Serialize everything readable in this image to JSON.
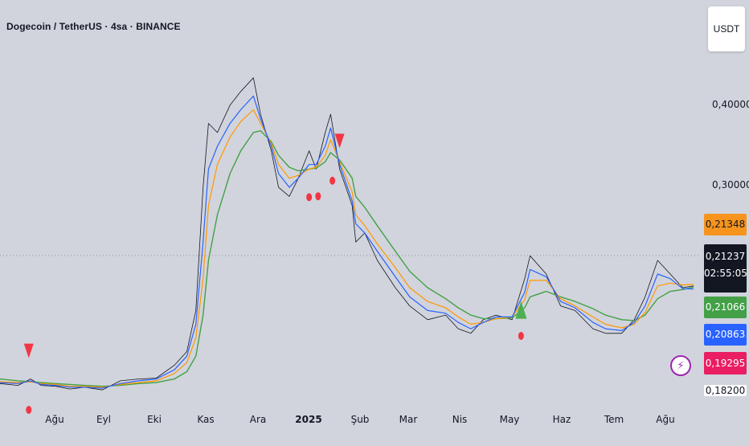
{
  "header": {
    "title": "Dogecoin / TetherUS · 4sa · BINANCE",
    "currency_button": "USDT"
  },
  "colors": {
    "background": "#d1d4dc",
    "price": "#131722",
    "ma_fast": "#2962ff",
    "ma_mid": "#ff9800",
    "ma_slow": "#43a047",
    "signal_sell": "#f23645",
    "signal_buy": "#4caf50"
  },
  "badges": {
    "orange": "0,21348",
    "current_price": "0,21237",
    "countdown": "02:55:05",
    "green": "0,21066",
    "blue": "0,20863",
    "pink": "0,19295",
    "last": "0,18200"
  },
  "chart_data": {
    "type": "line",
    "x_labels": [
      "Ağu",
      "Eyl",
      "Eki",
      "Kas",
      "Ara",
      "2025",
      "Şub",
      "Mar",
      "Nis",
      "May",
      "Haz",
      "Tem",
      "Ağu"
    ],
    "y_labels": [
      "0,40000",
      "0,30000"
    ],
    "x": [
      "2024-07-20",
      "2024-07-30",
      "2024-08-06",
      "2024-08-12",
      "2024-08-20",
      "2024-08-28",
      "2024-09-05",
      "2024-09-15",
      "2024-09-25",
      "2024-10-05",
      "2024-10-15",
      "2024-10-25",
      "2024-11-01",
      "2024-11-06",
      "2024-11-10",
      "2024-11-13",
      "2024-11-18",
      "2024-11-25",
      "2024-12-01",
      "2024-12-08",
      "2024-12-12",
      "2024-12-18",
      "2024-12-22",
      "2024-12-28",
      "2025-01-02",
      "2025-01-08",
      "2025-01-12",
      "2025-01-17",
      "2025-01-20",
      "2025-01-25",
      "2025-02-01",
      "2025-02-03",
      "2025-02-08",
      "2025-02-15",
      "2025-02-25",
      "2025-03-05",
      "2025-03-15",
      "2025-03-25",
      "2025-04-01",
      "2025-04-08",
      "2025-04-15",
      "2025-04-22",
      "2025-05-01",
      "2025-05-08",
      "2025-05-11",
      "2025-05-20",
      "2025-05-28",
      "2025-06-05",
      "2025-06-15",
      "2025-06-22",
      "2025-07-01",
      "2025-07-08",
      "2025-07-14",
      "2025-07-21",
      "2025-07-28",
      "2025-08-04",
      "2025-08-10"
    ],
    "series": [
      {
        "values": [
          0.105,
          0.103,
          0.11,
          0.103,
          0.102,
          0.099,
          0.101,
          0.098,
          0.108,
          0.11,
          0.111,
          0.125,
          0.14,
          0.185,
          0.32,
          0.39,
          0.38,
          0.41,
          0.425,
          0.44,
          0.4,
          0.36,
          0.32,
          0.31,
          0.33,
          0.36,
          0.34,
          0.38,
          0.4,
          0.34,
          0.3,
          0.26,
          0.27,
          0.24,
          0.21,
          0.19,
          0.175,
          0.18,
          0.165,
          0.16,
          0.175,
          0.18,
          0.175,
          0.22,
          0.245,
          0.225,
          0.19,
          0.185,
          0.165,
          0.16,
          0.16,
          0.175,
          0.2,
          0.24,
          0.225,
          0.21,
          0.212
        ]
      },
      {
        "values": [
          0.106,
          0.105,
          0.108,
          0.104,
          0.103,
          0.101,
          0.101,
          0.1,
          0.105,
          0.108,
          0.11,
          0.12,
          0.135,
          0.17,
          0.26,
          0.34,
          0.365,
          0.39,
          0.405,
          0.42,
          0.395,
          0.365,
          0.335,
          0.32,
          0.33,
          0.345,
          0.345,
          0.365,
          0.385,
          0.345,
          0.305,
          0.28,
          0.27,
          0.25,
          0.222,
          0.2,
          0.185,
          0.182,
          0.172,
          0.165,
          0.172,
          0.178,
          0.178,
          0.205,
          0.23,
          0.222,
          0.195,
          0.188,
          0.172,
          0.165,
          0.163,
          0.172,
          0.19,
          0.225,
          0.22,
          0.209,
          0.2086
        ]
      },
      {
        "values": [
          0.107,
          0.106,
          0.107,
          0.105,
          0.104,
          0.102,
          0.102,
          0.101,
          0.104,
          0.106,
          0.108,
          0.116,
          0.128,
          0.155,
          0.22,
          0.3,
          0.345,
          0.375,
          0.392,
          0.405,
          0.39,
          0.368,
          0.345,
          0.33,
          0.333,
          0.34,
          0.342,
          0.355,
          0.372,
          0.348,
          0.315,
          0.29,
          0.278,
          0.258,
          0.232,
          0.21,
          0.195,
          0.188,
          0.178,
          0.17,
          0.172,
          0.176,
          0.178,
          0.197,
          0.218,
          0.218,
          0.198,
          0.19,
          0.178,
          0.17,
          0.166,
          0.17,
          0.183,
          0.212,
          0.215,
          0.213,
          0.2135
        ]
      },
      {
        "values": [
          0.11,
          0.108,
          0.107,
          0.106,
          0.105,
          0.104,
          0.103,
          0.102,
          0.103,
          0.105,
          0.106,
          0.11,
          0.118,
          0.135,
          0.18,
          0.24,
          0.29,
          0.335,
          0.36,
          0.38,
          0.382,
          0.37,
          0.355,
          0.342,
          0.338,
          0.34,
          0.341,
          0.348,
          0.358,
          0.35,
          0.33,
          0.31,
          0.298,
          0.278,
          0.25,
          0.228,
          0.21,
          0.198,
          0.188,
          0.18,
          0.176,
          0.176,
          0.177,
          0.188,
          0.2,
          0.206,
          0.2,
          0.195,
          0.187,
          0.18,
          0.175,
          0.174,
          0.18,
          0.198,
          0.206,
          0.208,
          0.2107
        ]
      }
    ],
    "signals": {
      "sell_triangles": [
        "2024-08-05",
        "2025-01-25"
      ],
      "buy_triangles": [
        "2025-05-06"
      ],
      "red_dots": [
        "2024-08-05",
        "2025-01-08",
        "2025-01-13",
        "2025-01-21",
        "2025-05-06"
      ]
    },
    "ylim": [
      0.085,
      0.49
    ],
    "grid": false,
    "legend": "none"
  }
}
